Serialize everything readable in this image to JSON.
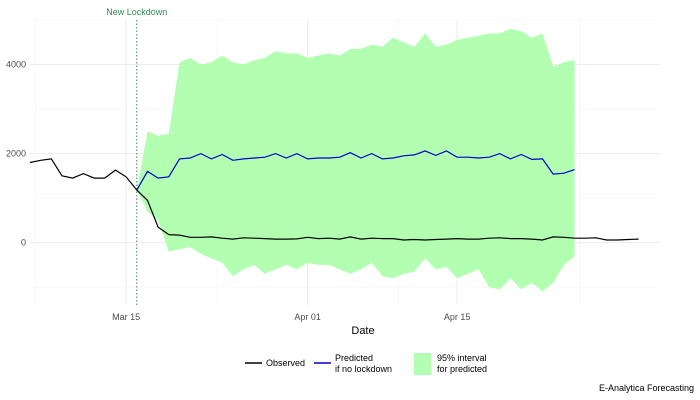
{
  "chart_data": {
    "type": "line",
    "title": "",
    "xlabel": "Date",
    "ylabel": "",
    "x_start": "2020-03-06",
    "x_end": "2020-05-04",
    "xlim": [
      "2020-03-06",
      "2020-05-04"
    ],
    "ylim": [
      -1400,
      5000
    ],
    "x_ticks": [
      {
        "date": "2020-03-15",
        "label": "Mar 15"
      },
      {
        "date": "2020-04-01",
        "label": "Apr 01"
      },
      {
        "date": "2020-04-15",
        "label": "Apr 15"
      }
    ],
    "y_ticks": [
      {
        "value": 0,
        "label": "0"
      },
      {
        "value": 2000,
        "label": "2000"
      },
      {
        "value": 4000,
        "label": "4000"
      }
    ],
    "grid": true,
    "annotation": {
      "date": "2020-03-16",
      "label": "New Lockdown",
      "color": "#2e8b57"
    },
    "observed": {
      "name": "Observed",
      "color": "#000000",
      "x": [
        "2020-03-06",
        "2020-03-07",
        "2020-03-08",
        "2020-03-09",
        "2020-03-10",
        "2020-03-11",
        "2020-03-12",
        "2020-03-13",
        "2020-03-14",
        "2020-03-15",
        "2020-03-16",
        "2020-03-17",
        "2020-03-18",
        "2020-03-19",
        "2020-03-20",
        "2020-03-21",
        "2020-03-22",
        "2020-03-23",
        "2020-03-24",
        "2020-03-25",
        "2020-03-26",
        "2020-03-27",
        "2020-03-28",
        "2020-03-29",
        "2020-03-30",
        "2020-03-31",
        "2020-04-01",
        "2020-04-02",
        "2020-04-03",
        "2020-04-04",
        "2020-04-05",
        "2020-04-06",
        "2020-04-07",
        "2020-04-08",
        "2020-04-09",
        "2020-04-10",
        "2020-04-11",
        "2020-04-12",
        "2020-04-13",
        "2020-04-14",
        "2020-04-15",
        "2020-04-16",
        "2020-04-17",
        "2020-04-18",
        "2020-04-19",
        "2020-04-20",
        "2020-04-21",
        "2020-04-22",
        "2020-04-23",
        "2020-04-24",
        "2020-04-25",
        "2020-04-26",
        "2020-04-27",
        "2020-04-28",
        "2020-04-29",
        "2020-04-30",
        "2020-05-01",
        "2020-05-02",
        "2020-05-03",
        "2020-05-04"
      ],
      "y": [
        1800,
        1850,
        1880,
        1500,
        1450,
        1550,
        1450,
        1450,
        1630,
        1480,
        1180,
        950,
        350,
        180,
        170,
        120,
        120,
        130,
        100,
        80,
        110,
        100,
        90,
        80,
        80,
        85,
        120,
        90,
        100,
        80,
        130,
        80,
        100,
        90,
        90,
        60,
        70,
        60,
        70,
        80,
        90,
        80,
        80,
        100,
        110,
        90,
        90,
        80,
        60,
        130,
        120,
        100,
        100,
        110,
        60,
        60,
        70,
        80,
        null,
        null
      ]
    },
    "predicted": {
      "name": "Predicted\nif no lockdown",
      "color": "#0000cc",
      "x": [
        "2020-03-16",
        "2020-03-17",
        "2020-03-18",
        "2020-03-19",
        "2020-03-20",
        "2020-03-21",
        "2020-03-22",
        "2020-03-23",
        "2020-03-24",
        "2020-03-25",
        "2020-03-26",
        "2020-03-27",
        "2020-03-28",
        "2020-03-29",
        "2020-03-30",
        "2020-03-31",
        "2020-04-01",
        "2020-04-02",
        "2020-04-03",
        "2020-04-04",
        "2020-04-05",
        "2020-04-06",
        "2020-04-07",
        "2020-04-08",
        "2020-04-09",
        "2020-04-10",
        "2020-04-11",
        "2020-04-12",
        "2020-04-13",
        "2020-04-14",
        "2020-04-15",
        "2020-04-16",
        "2020-04-17",
        "2020-04-18",
        "2020-04-19",
        "2020-04-20",
        "2020-04-21",
        "2020-04-22",
        "2020-04-23",
        "2020-04-24",
        "2020-04-25",
        "2020-04-26",
        "2020-04-27",
        "2020-04-28",
        "2020-04-29",
        "2020-04-30"
      ],
      "y": [
        1180,
        1600,
        1450,
        1480,
        1880,
        1900,
        2000,
        1880,
        1980,
        1850,
        1880,
        1900,
        1920,
        2000,
        1900,
        2000,
        1880,
        1900,
        1900,
        1920,
        2020,
        1900,
        2000,
        1880,
        1900,
        1950,
        1970,
        2060,
        1960,
        2060,
        1920,
        1920,
        1900,
        1920,
        2000,
        1880,
        1980,
        1870,
        1880,
        1540,
        1560,
        1640,
        null,
        null,
        null,
        null
      ]
    },
    "interval": {
      "name": "95% interval\nfor predicted",
      "color": "#b2ffb2",
      "x": [
        "2020-03-16",
        "2020-03-17",
        "2020-03-18",
        "2020-03-19",
        "2020-03-20",
        "2020-03-21",
        "2020-03-22",
        "2020-03-23",
        "2020-03-24",
        "2020-03-25",
        "2020-03-26",
        "2020-03-27",
        "2020-03-28",
        "2020-03-29",
        "2020-03-30",
        "2020-03-31",
        "2020-04-01",
        "2020-04-02",
        "2020-04-03",
        "2020-04-04",
        "2020-04-05",
        "2020-04-06",
        "2020-04-07",
        "2020-04-08",
        "2020-04-09",
        "2020-04-10",
        "2020-04-11",
        "2020-04-12",
        "2020-04-13",
        "2020-04-14",
        "2020-04-15",
        "2020-04-16",
        "2020-04-17",
        "2020-04-18",
        "2020-04-19",
        "2020-04-20",
        "2020-04-21",
        "2020-04-22",
        "2020-04-23",
        "2020-04-24",
        "2020-04-25",
        "2020-04-26"
      ],
      "lower": [
        1180,
        700,
        500,
        -200,
        -150,
        -100,
        -250,
        -350,
        -450,
        -750,
        -600,
        -500,
        -700,
        -600,
        -500,
        -600,
        -450,
        -500,
        -500,
        -600,
        -700,
        -600,
        -450,
        -750,
        -800,
        -700,
        -650,
        -350,
        -600,
        -550,
        -800,
        -700,
        -600,
        -1000,
        -1050,
        -800,
        -1050,
        -900,
        -1100,
        -900,
        -500,
        -300
      ],
      "upper": [
        1180,
        2500,
        2400,
        2450,
        4050,
        4150,
        4000,
        4050,
        4200,
        4050,
        4000,
        4100,
        4150,
        4300,
        4250,
        4250,
        4150,
        4200,
        4250,
        4200,
        4350,
        4350,
        4450,
        4400,
        4600,
        4500,
        4400,
        4700,
        4400,
        4450,
        4550,
        4600,
        4650,
        4700,
        4700,
        4800,
        4750,
        4600,
        4700,
        3950,
        4050,
        4100
      ]
    },
    "legend": {
      "position": "bottom",
      "observed_label": "Observed",
      "predicted_line1": "Predicted",
      "predicted_line2": "if no lockdown",
      "interval_line1": "95% interval",
      "interval_line2": "for predicted"
    },
    "caption": "E-Analytica Forecasting"
  }
}
